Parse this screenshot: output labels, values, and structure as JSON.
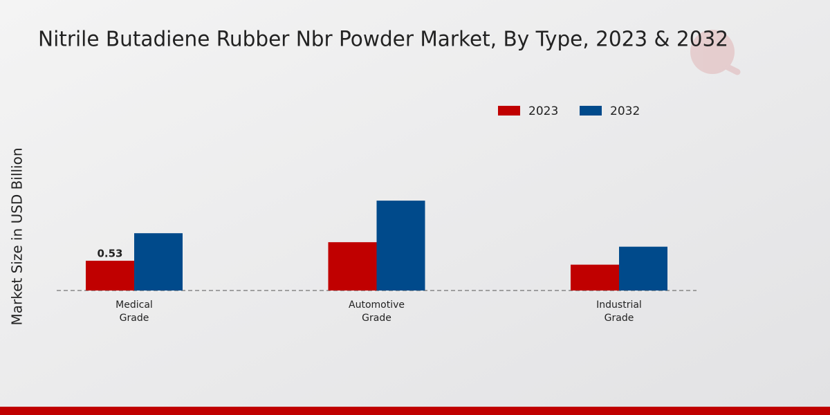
{
  "chart_data": {
    "type": "bar",
    "title": "Nitrile Butadiene Rubber Nbr Powder Market, By Type, 2023 & 2032",
    "y_label": "Market Size in USD Billion",
    "categories": [
      "Medical Grade",
      "Automotive Grade",
      "Industrial Grade"
    ],
    "series": [
      {
        "name": "2023",
        "color": "#c00000",
        "values": [
          0.53,
          0.86,
          0.46
        ]
      },
      {
        "name": "2032",
        "color": "#004a8b",
        "values": [
          1.02,
          1.6,
          0.78
        ]
      }
    ]
  }
}
